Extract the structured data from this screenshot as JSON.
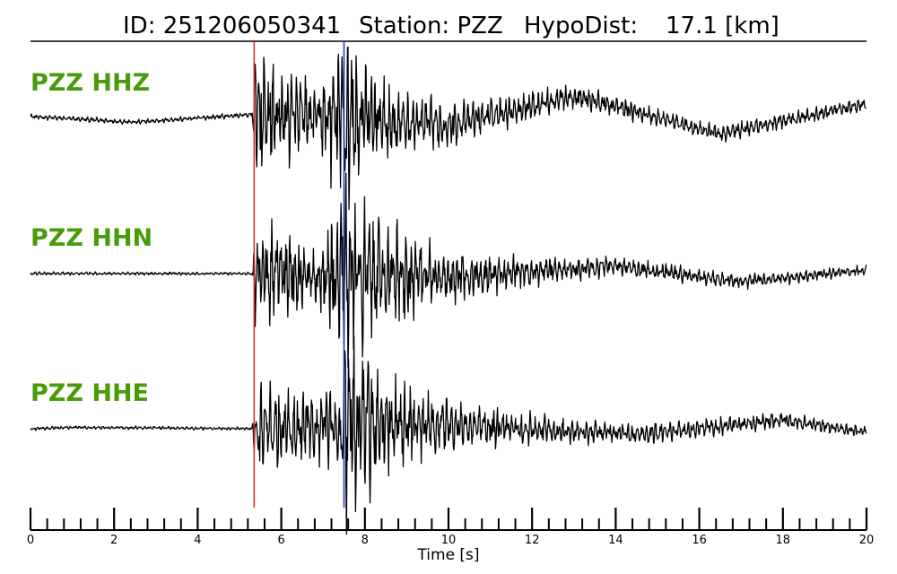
{
  "header": {
    "title_id": "ID: 251206050341",
    "title_station": "Station: PZZ",
    "title_hypodist": "HypoDist:",
    "title_dist_value": "17.1 [km]"
  },
  "chart_data": {
    "type": "line",
    "title": "ID: 251206050341   Station: PZZ   HypoDist:    17.1 [km]",
    "xlabel": "Time [s]",
    "ylabel": "",
    "xlim": [
      0,
      20
    ],
    "major_ticks": [
      0,
      2,
      4,
      6,
      8,
      10,
      12,
      14,
      16,
      18,
      20
    ],
    "major_tick_labels": [
      "0",
      "2",
      "4",
      "6",
      "8",
      "10",
      "12",
      "14",
      "16",
      "18",
      "20"
    ],
    "minor_tick_step": 0.4,
    "grid": false,
    "legend": "none",
    "p_pick_time": 5.35,
    "s_pick_time": 7.5,
    "p_pick_color": "#e8201e",
    "s_pick_color": "#2030c8",
    "trace_color": "#000000",
    "label_color": "#4a9a0a",
    "series": [
      {
        "name": "PZZ HHZ",
        "envelope": [
          {
            "t": 0,
            "amp": 0.03
          },
          {
            "t": 5.3,
            "amp": 0.03
          },
          {
            "t": 5.4,
            "amp": 1.0
          },
          {
            "t": 6.0,
            "amp": 0.55
          },
          {
            "t": 7.0,
            "amp": 0.45
          },
          {
            "t": 7.5,
            "amp": 1.25
          },
          {
            "t": 8.0,
            "amp": 0.8
          },
          {
            "t": 9.0,
            "amp": 0.35
          },
          {
            "t": 11.0,
            "amp": 0.2
          },
          {
            "t": 14.0,
            "amp": 0.12
          },
          {
            "t": 20.0,
            "amp": 0.08
          }
        ],
        "long_period": [
          {
            "t": 0,
            "v": 0.0
          },
          {
            "t": 2.5,
            "v": -0.08
          },
          {
            "t": 5.3,
            "v": 0.03
          },
          {
            "t": 8.0,
            "v": -0.05
          },
          {
            "t": 10.0,
            "v": -0.12
          },
          {
            "t": 13.0,
            "v": 0.3
          },
          {
            "t": 16.5,
            "v": -0.25
          },
          {
            "t": 20.0,
            "v": 0.18
          }
        ]
      },
      {
        "name": "PZZ HHN",
        "envelope": [
          {
            "t": 0,
            "amp": 0.02
          },
          {
            "t": 5.3,
            "amp": 0.02
          },
          {
            "t": 5.4,
            "amp": 0.7
          },
          {
            "t": 6.0,
            "amp": 0.5
          },
          {
            "t": 7.0,
            "amp": 0.45
          },
          {
            "t": 7.5,
            "amp": 1.1
          },
          {
            "t": 8.5,
            "amp": 0.65
          },
          {
            "t": 10.0,
            "amp": 0.3
          },
          {
            "t": 13.0,
            "amp": 0.13
          },
          {
            "t": 20.0,
            "amp": 0.06
          }
        ],
        "long_period": [
          {
            "t": 0,
            "v": 0.0
          },
          {
            "t": 5.3,
            "v": 0.0
          },
          {
            "t": 10.0,
            "v": -0.05
          },
          {
            "t": 14.0,
            "v": 0.1
          },
          {
            "t": 17.0,
            "v": -0.12
          },
          {
            "t": 20.0,
            "v": 0.05
          }
        ]
      },
      {
        "name": "PZZ HHE",
        "envelope": [
          {
            "t": 0,
            "amp": 0.02
          },
          {
            "t": 5.3,
            "amp": 0.02
          },
          {
            "t": 5.4,
            "amp": 0.55
          },
          {
            "t": 6.5,
            "amp": 0.45
          },
          {
            "t": 7.4,
            "amp": 0.45
          },
          {
            "t": 7.5,
            "amp": 1.2
          },
          {
            "t": 8.5,
            "amp": 0.6
          },
          {
            "t": 10.0,
            "amp": 0.3
          },
          {
            "t": 13.0,
            "amp": 0.14
          },
          {
            "t": 20.0,
            "amp": 0.07
          }
        ],
        "long_period": [
          {
            "t": 0,
            "v": 0.0
          },
          {
            "t": 1.0,
            "v": 0.02
          },
          {
            "t": 5.3,
            "v": 0.0
          },
          {
            "t": 10.0,
            "v": 0.05
          },
          {
            "t": 14.5,
            "v": -0.08
          },
          {
            "t": 18.0,
            "v": 0.12
          },
          {
            "t": 20.0,
            "v": -0.05
          }
        ]
      }
    ]
  }
}
